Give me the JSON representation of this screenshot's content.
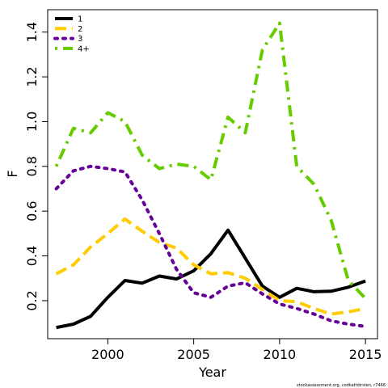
{
  "chart_data": {
    "type": "line",
    "xlabel": "Year",
    "ylabel": "F",
    "xlim": [
      1996.5,
      2015.7
    ],
    "ylim": [
      0.03,
      1.5
    ],
    "x_ticks": [
      2000,
      2005,
      2010,
      2015
    ],
    "y_ticks": [
      0.2,
      0.4,
      0.6,
      0.8,
      1.0,
      1.2,
      1.4
    ],
    "y_tick_labels": [
      "0.2",
      "0.4",
      "0.6",
      "0.8",
      "1.0",
      "1.2",
      "1.4"
    ],
    "grid": false,
    "legend_position": "top-left",
    "x": [
      1997,
      1998,
      1999,
      2000,
      2001,
      2002,
      2003,
      2004,
      2005,
      2006,
      2007,
      2008,
      2009,
      2010,
      2011,
      2012,
      2013,
      2014,
      2015
    ],
    "series": [
      {
        "name": "1",
        "color": "#000000",
        "style": "solid",
        "values": [
          0.08,
          0.095,
          0.13,
          0.215,
          0.29,
          0.278,
          0.31,
          0.297,
          0.333,
          0.41,
          0.515,
          0.39,
          0.265,
          0.215,
          0.255,
          0.24,
          0.242,
          0.26,
          0.288
        ]
      },
      {
        "name": "2",
        "color": "#FFCC00",
        "style": "dashed",
        "values": [
          0.32,
          0.36,
          0.44,
          0.5,
          0.565,
          0.51,
          0.46,
          0.435,
          0.36,
          0.32,
          0.325,
          0.3,
          0.25,
          0.2,
          0.195,
          0.165,
          0.14,
          0.15,
          0.165
        ]
      },
      {
        "name": "3",
        "color": "#660099",
        "style": "dotted",
        "values": [
          0.7,
          0.78,
          0.8,
          0.79,
          0.775,
          0.65,
          0.5,
          0.34,
          0.235,
          0.215,
          0.265,
          0.28,
          0.23,
          0.185,
          0.165,
          0.14,
          0.11,
          0.095,
          0.085
        ]
      },
      {
        "name": "4+",
        "color": "#66CC00",
        "style": "dotdash",
        "values": [
          0.8,
          0.97,
          0.95,
          1.04,
          1.0,
          0.85,
          0.79,
          0.81,
          0.8,
          0.74,
          1.02,
          0.95,
          1.32,
          1.44,
          0.8,
          0.72,
          0.56,
          0.29,
          0.21
        ]
      }
    ]
  },
  "credit": "stockassessment.org, codkattdirsten, r7466"
}
